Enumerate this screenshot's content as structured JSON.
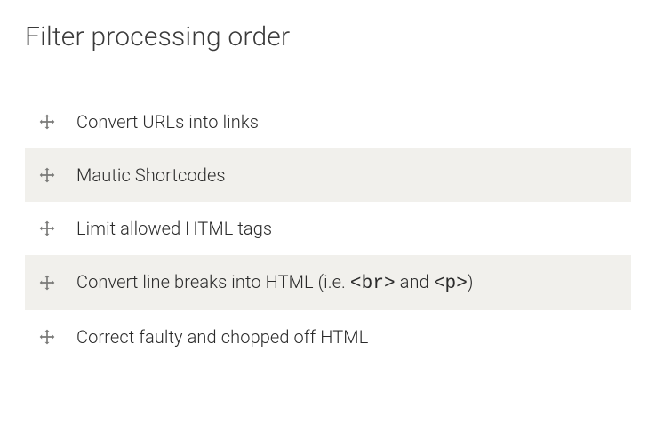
{
  "title": "Filter processing order",
  "colors": {
    "background": "#ffffff",
    "text": "#2a2a2a",
    "title_text": "#3a3a3a",
    "stripe_bg": "#f1f0ec",
    "icon_color": "#7a7a78"
  },
  "typography": {
    "title_fontsize": 30,
    "title_fontweight": 300,
    "row_fontsize": 20,
    "row_fontweight": 300,
    "code_fontsize": 21
  },
  "filters": [
    {
      "label": "Convert URLs into links",
      "striped": false
    },
    {
      "label": "Mautic Shortcodes",
      "striped": true
    },
    {
      "label": "Limit allowed HTML tags",
      "striped": false
    },
    {
      "label_html": "Convert line breaks into HTML (i.e. <code>&lt;br&gt;</code> and <code>&lt;p&gt;</code>)",
      "striped": true
    },
    {
      "label": "Correct faulty and chopped off HTML",
      "striped": false
    }
  ],
  "icons": {
    "drag_handle": "move-icon"
  }
}
